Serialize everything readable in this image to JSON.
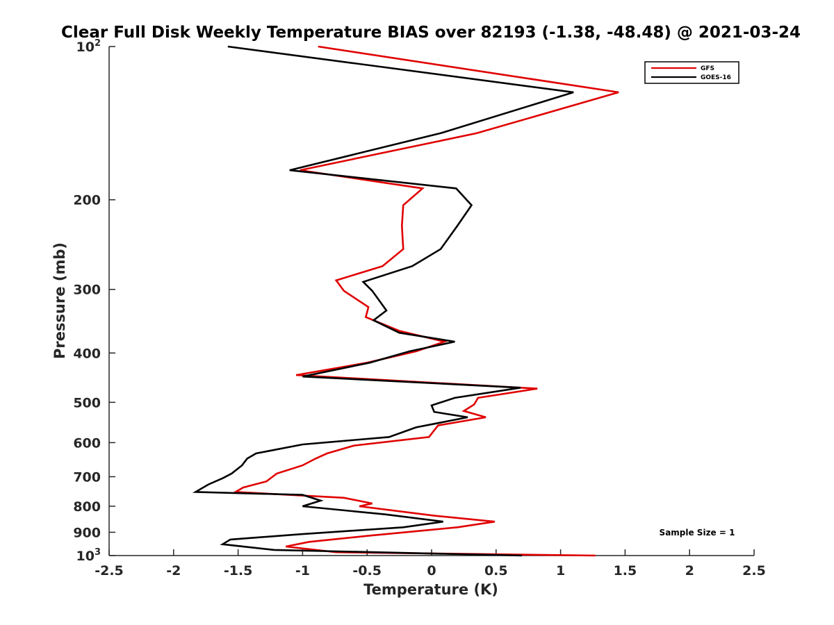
{
  "chart_data": {
    "type": "line",
    "title": "Clear Full Disk Weekly Temperature BIAS over 82193 (-1.38, -48.48) @ 2021-03-24",
    "xlabel": "Temperature (K)",
    "ylabel": "Pressure (mb)",
    "xlim": [
      -2.5,
      2.5
    ],
    "ylim": [
      100,
      1000
    ],
    "y_scale": "log",
    "y_reversed": true,
    "x_ticks": [
      "-2.5",
      "-2",
      "-1.5",
      "-1",
      "-0.5",
      "0",
      "0.5",
      "1",
      "1.5",
      "2",
      "2.5"
    ],
    "x_tick_values": [
      -2.5,
      -2,
      -1.5,
      -1,
      -0.5,
      0,
      0.5,
      1,
      1.5,
      2,
      2.5
    ],
    "y_ticks": [
      {
        "value": 100,
        "base": "10",
        "exp": "2"
      },
      {
        "value": 200,
        "label": "200"
      },
      {
        "value": 300,
        "label": "300"
      },
      {
        "value": 400,
        "label": "400"
      },
      {
        "value": 500,
        "label": "500"
      },
      {
        "value": 600,
        "label": "600"
      },
      {
        "value": 700,
        "label": "700"
      },
      {
        "value": 800,
        "label": "800"
      },
      {
        "value": 900,
        "label": "900"
      },
      {
        "value": 1000,
        "base": "10",
        "exp": "3"
      }
    ],
    "legend_position": "top-right",
    "annotation": "Sample Size = 1",
    "series": [
      {
        "name": "GFS",
        "color": "#e00000",
        "x": [
          -0.88,
          1.45,
          0.35,
          -1.02,
          -0.07,
          -0.22,
          -0.23,
          -0.22,
          -0.38,
          -0.74,
          -0.68,
          -0.49,
          -0.51,
          -0.25,
          0.1,
          -0.12,
          -0.5,
          -1.05,
          0.82,
          0.36,
          0.33,
          0.25,
          0.42,
          0.05,
          -0.02,
          -0.6,
          -0.81,
          -0.9,
          -1.0,
          -1.2,
          -1.28,
          -1.46,
          -1.52,
          -0.68,
          -0.46,
          -0.56,
          0.02,
          0.49,
          0.2,
          -0.5,
          -0.95,
          -1.13,
          -0.74,
          1.27
        ],
        "y": [
          100,
          123,
          148,
          175,
          190,
          205,
          225,
          250,
          270,
          288,
          302,
          325,
          340,
          362,
          380,
          397,
          418,
          442,
          470,
          490,
          505,
          520,
          535,
          555,
          585,
          608,
          630,
          645,
          665,
          690,
          715,
          735,
          750,
          770,
          790,
          800,
          835,
          858,
          880,
          915,
          940,
          960,
          985,
          1000
        ]
      },
      {
        "name": "GOES-16",
        "color": "#000000",
        "x": [
          -1.58,
          1.1,
          0.07,
          -1.1,
          0.19,
          0.31,
          0.2,
          0.07,
          -0.15,
          -0.53,
          -0.46,
          -0.35,
          -0.45,
          -0.25,
          0.18,
          -0.17,
          -0.48,
          -1.0,
          0.69,
          0.18,
          0.0,
          0.02,
          0.28,
          -0.12,
          -0.33,
          -1.0,
          -1.36,
          -1.43,
          -1.47,
          -1.55,
          -1.62,
          -1.73,
          -1.83,
          -1.0,
          -0.86,
          -1.0,
          -0.36,
          0.09,
          -0.22,
          -1.02,
          -1.56,
          -1.62,
          -1.22,
          0.7
        ],
        "y": [
          100,
          123,
          148,
          175,
          190,
          205,
          225,
          250,
          270,
          290,
          302,
          330,
          345,
          365,
          380,
          397,
          418,
          445,
          468,
          490,
          507,
          522,
          535,
          560,
          585,
          605,
          630,
          645,
          665,
          690,
          705,
          725,
          750,
          760,
          780,
          800,
          830,
          858,
          880,
          908,
          930,
          950,
          975,
          1000
        ]
      }
    ]
  }
}
